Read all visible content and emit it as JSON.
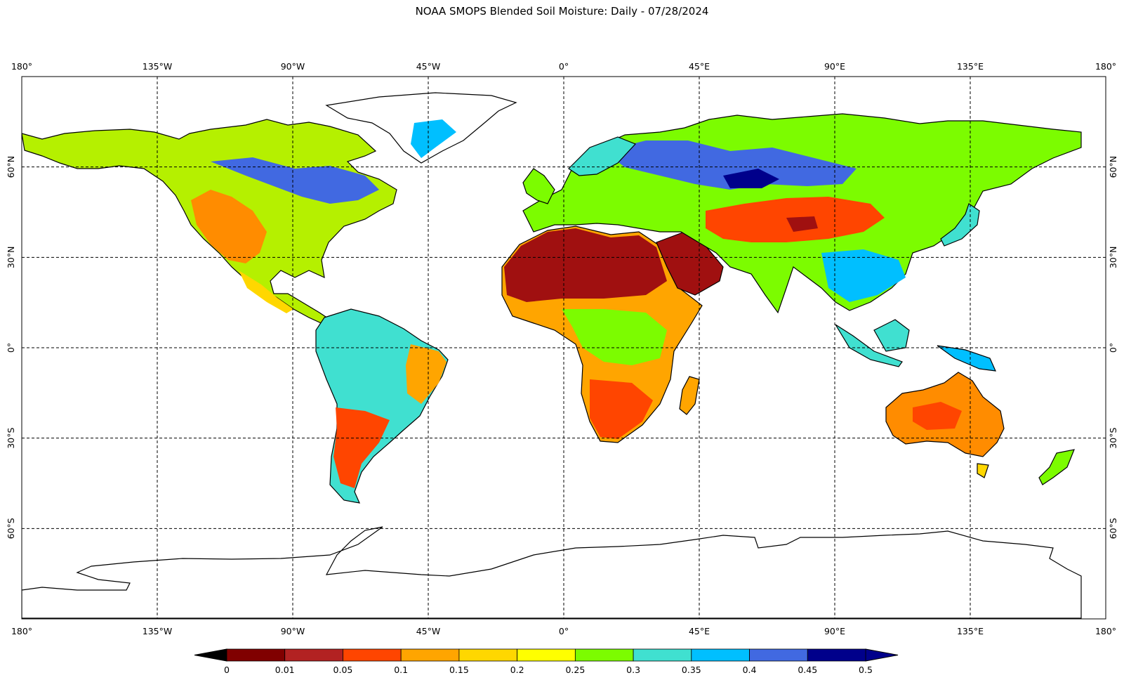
{
  "title": "NOAA SMOPS Blended Soil Moisture: Daily - 07/28/2024",
  "map": {
    "lon_labels": [
      "180°",
      "135°W",
      "90°W",
      "45°W",
      "0°",
      "45°E",
      "90°E",
      "135°E",
      "180°"
    ],
    "lat_labels_top_to_bottom": [
      "60°N",
      "30°N",
      "0°",
      "30°S",
      "60°S"
    ],
    "lon_range": [
      -180,
      180
    ],
    "lat_range": [
      -90,
      90
    ],
    "gridline_lons": [
      -135,
      -90,
      -45,
      0,
      45,
      90,
      135
    ],
    "gridline_lats": [
      60,
      30,
      0,
      -30,
      -60
    ],
    "gridlines": "dashed",
    "projection": "equirectangular",
    "masked_color": "#ffffff"
  },
  "colorbar": {
    "under_color": "#000000",
    "over_color": "#00008b",
    "tick_labels": [
      "0",
      "0.01",
      "0.05",
      "0.1",
      "0.15",
      "0.2",
      "0.25",
      "0.3",
      "0.35",
      "0.4",
      "0.45",
      "0.5"
    ],
    "bins": [
      {
        "from": "0",
        "to": "0.01",
        "color": "#800000"
      },
      {
        "from": "0.01",
        "to": "0.05",
        "color": "#b22222"
      },
      {
        "from": "0.05",
        "to": "0.1",
        "color": "#ff4500"
      },
      {
        "from": "0.1",
        "to": "0.15",
        "color": "#ffa500"
      },
      {
        "from": "0.15",
        "to": "0.2",
        "color": "#ffd700"
      },
      {
        "from": "0.2",
        "to": "0.25",
        "color": "#ffff00"
      },
      {
        "from": "0.25",
        "to": "0.3",
        "color": "#7cfc00"
      },
      {
        "from": "0.3",
        "to": "0.35",
        "color": "#40e0d0"
      },
      {
        "from": "0.35",
        "to": "0.4",
        "color": "#00bfff"
      },
      {
        "from": "0.4",
        "to": "0.45",
        "color": "#4169e1"
      },
      {
        "from": "0.45",
        "to": "0.5",
        "color": "#00008b"
      }
    ]
  }
}
